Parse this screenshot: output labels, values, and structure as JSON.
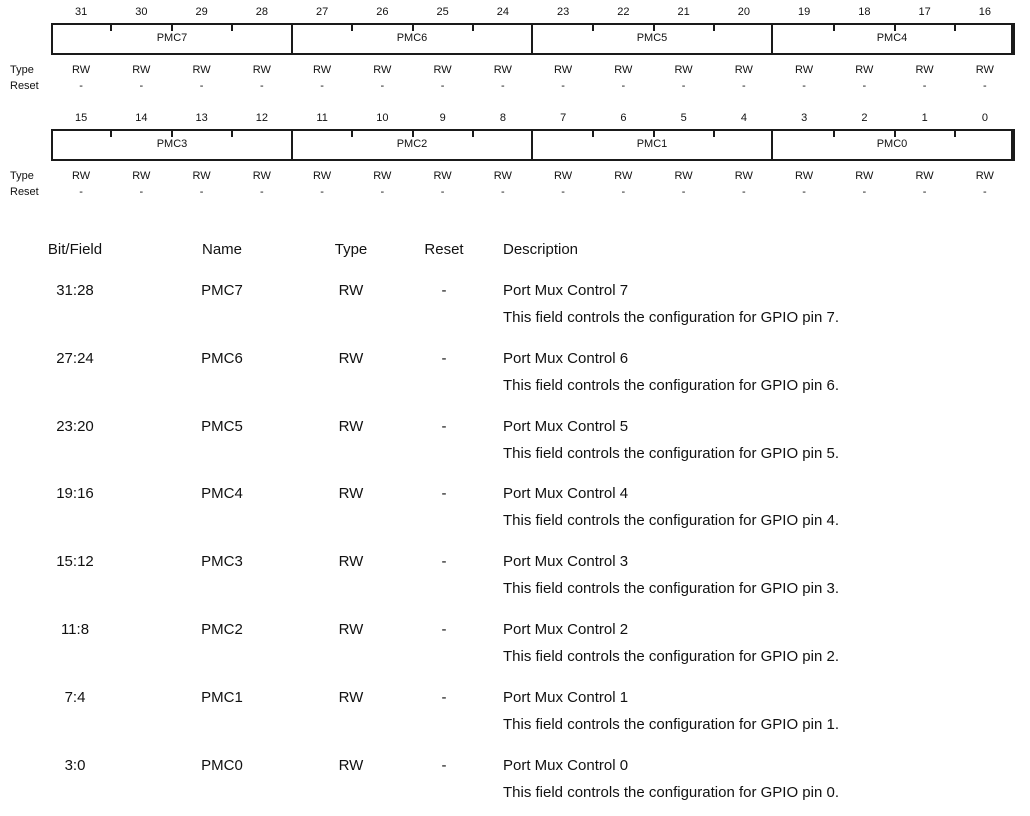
{
  "register": {
    "rows": [
      {
        "bits": [
          "31",
          "30",
          "29",
          "28",
          "27",
          "26",
          "25",
          "24",
          "23",
          "22",
          "21",
          "20",
          "19",
          "18",
          "17",
          "16"
        ],
        "fields": [
          "PMC7",
          "PMC6",
          "PMC5",
          "PMC4"
        ],
        "types": [
          "RW",
          "RW",
          "RW",
          "RW",
          "RW",
          "RW",
          "RW",
          "RW",
          "RW",
          "RW",
          "RW",
          "RW",
          "RW",
          "RW",
          "RW",
          "RW"
        ],
        "resets": [
          "-",
          "-",
          "-",
          "-",
          "-",
          "-",
          "-",
          "-",
          "-",
          "-",
          "-",
          "-",
          "-",
          "-",
          "-",
          "-"
        ]
      },
      {
        "bits": [
          "15",
          "14",
          "13",
          "12",
          "11",
          "10",
          "9",
          "8",
          "7",
          "6",
          "5",
          "4",
          "3",
          "2",
          "1",
          "0"
        ],
        "fields": [
          "PMC3",
          "PMC2",
          "PMC1",
          "PMC0"
        ],
        "types": [
          "RW",
          "RW",
          "RW",
          "RW",
          "RW",
          "RW",
          "RW",
          "RW",
          "RW",
          "RW",
          "RW",
          "RW",
          "RW",
          "RW",
          "RW",
          "RW"
        ],
        "resets": [
          "-",
          "-",
          "-",
          "-",
          "-",
          "-",
          "-",
          "-",
          "-",
          "-",
          "-",
          "-",
          "-",
          "-",
          "-",
          "-"
        ]
      }
    ],
    "type_label": "Type",
    "reset_label": "Reset"
  },
  "table": {
    "headers": {
      "bitfield": "Bit/Field",
      "name": "Name",
      "type": "Type",
      "reset": "Reset",
      "description": "Description"
    },
    "rows": [
      {
        "bits": "31:28",
        "name": "PMC7",
        "type": "RW",
        "reset": "-",
        "title": "Port Mux Control 7",
        "detail": "This field controls the configuration for GPIO pin 7."
      },
      {
        "bits": "27:24",
        "name": "PMC6",
        "type": "RW",
        "reset": "-",
        "title": "Port Mux Control 6",
        "detail": "This field controls the configuration for GPIO pin 6."
      },
      {
        "bits": "23:20",
        "name": "PMC5",
        "type": "RW",
        "reset": "-",
        "title": "Port Mux Control 5",
        "detail": "This field controls the configuration for GPIO pin 5."
      },
      {
        "bits": "19:16",
        "name": "PMC4",
        "type": "RW",
        "reset": "-",
        "title": "Port Mux Control 4",
        "detail": "This field controls the configuration for GPIO pin 4."
      },
      {
        "bits": "15:12",
        "name": "PMC3",
        "type": "RW",
        "reset": "-",
        "title": "Port Mux Control 3",
        "detail": "This field controls the configuration for GPIO pin 3."
      },
      {
        "bits": "11:8",
        "name": "PMC2",
        "type": "RW",
        "reset": "-",
        "title": "Port Mux Control 2",
        "detail": "This field controls the configuration for GPIO pin 2."
      },
      {
        "bits": "7:4",
        "name": "PMC1",
        "type": "RW",
        "reset": "-",
        "title": "Port Mux Control 1",
        "detail": "This field controls the configuration for GPIO pin 1."
      },
      {
        "bits": "3:0",
        "name": "PMC0",
        "type": "RW",
        "reset": "-",
        "title": "Port Mux Control 0",
        "detail": "This field controls the configuration for GPIO pin 0."
      }
    ]
  }
}
